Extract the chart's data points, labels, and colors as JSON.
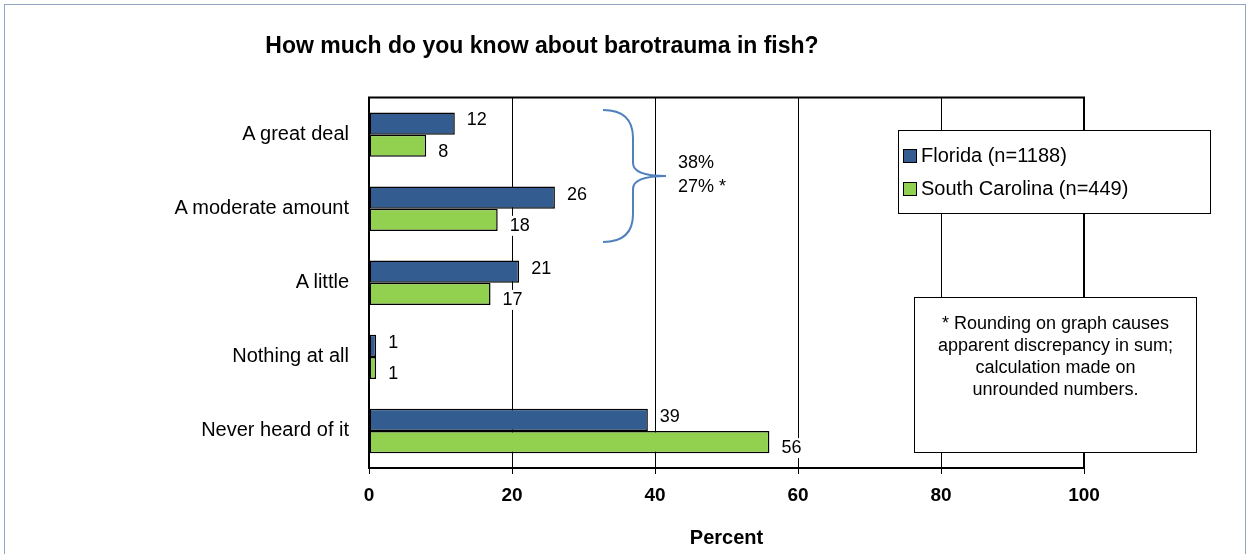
{
  "chart_data": {
    "type": "bar",
    "orientation": "horizontal",
    "title": "How much do you know about barotrauma in fish?",
    "xlabel": "Percent",
    "categories": [
      "A great deal",
      "A moderate amount",
      "A little",
      "Nothing at all",
      "Never heard of it"
    ],
    "series": [
      {
        "name": "Florida (n=1188)",
        "color": "#335d90",
        "values": [
          12,
          26,
          21,
          1,
          39
        ]
      },
      {
        "name": "South Carolina (n=449)",
        "color": "#92d050",
        "values": [
          8,
          18,
          17,
          1,
          56
        ]
      }
    ],
    "xlim": [
      0,
      100
    ],
    "xticks": [
      0,
      20,
      40,
      60,
      80,
      100
    ],
    "grid": "x",
    "legend": "top right",
    "data_labels": true,
    "annotations": [
      "38%",
      "27% *",
      "* Rounding on graph causes apparent discrepancy in sum; calculation made on unrounded numbers."
    ]
  }
}
